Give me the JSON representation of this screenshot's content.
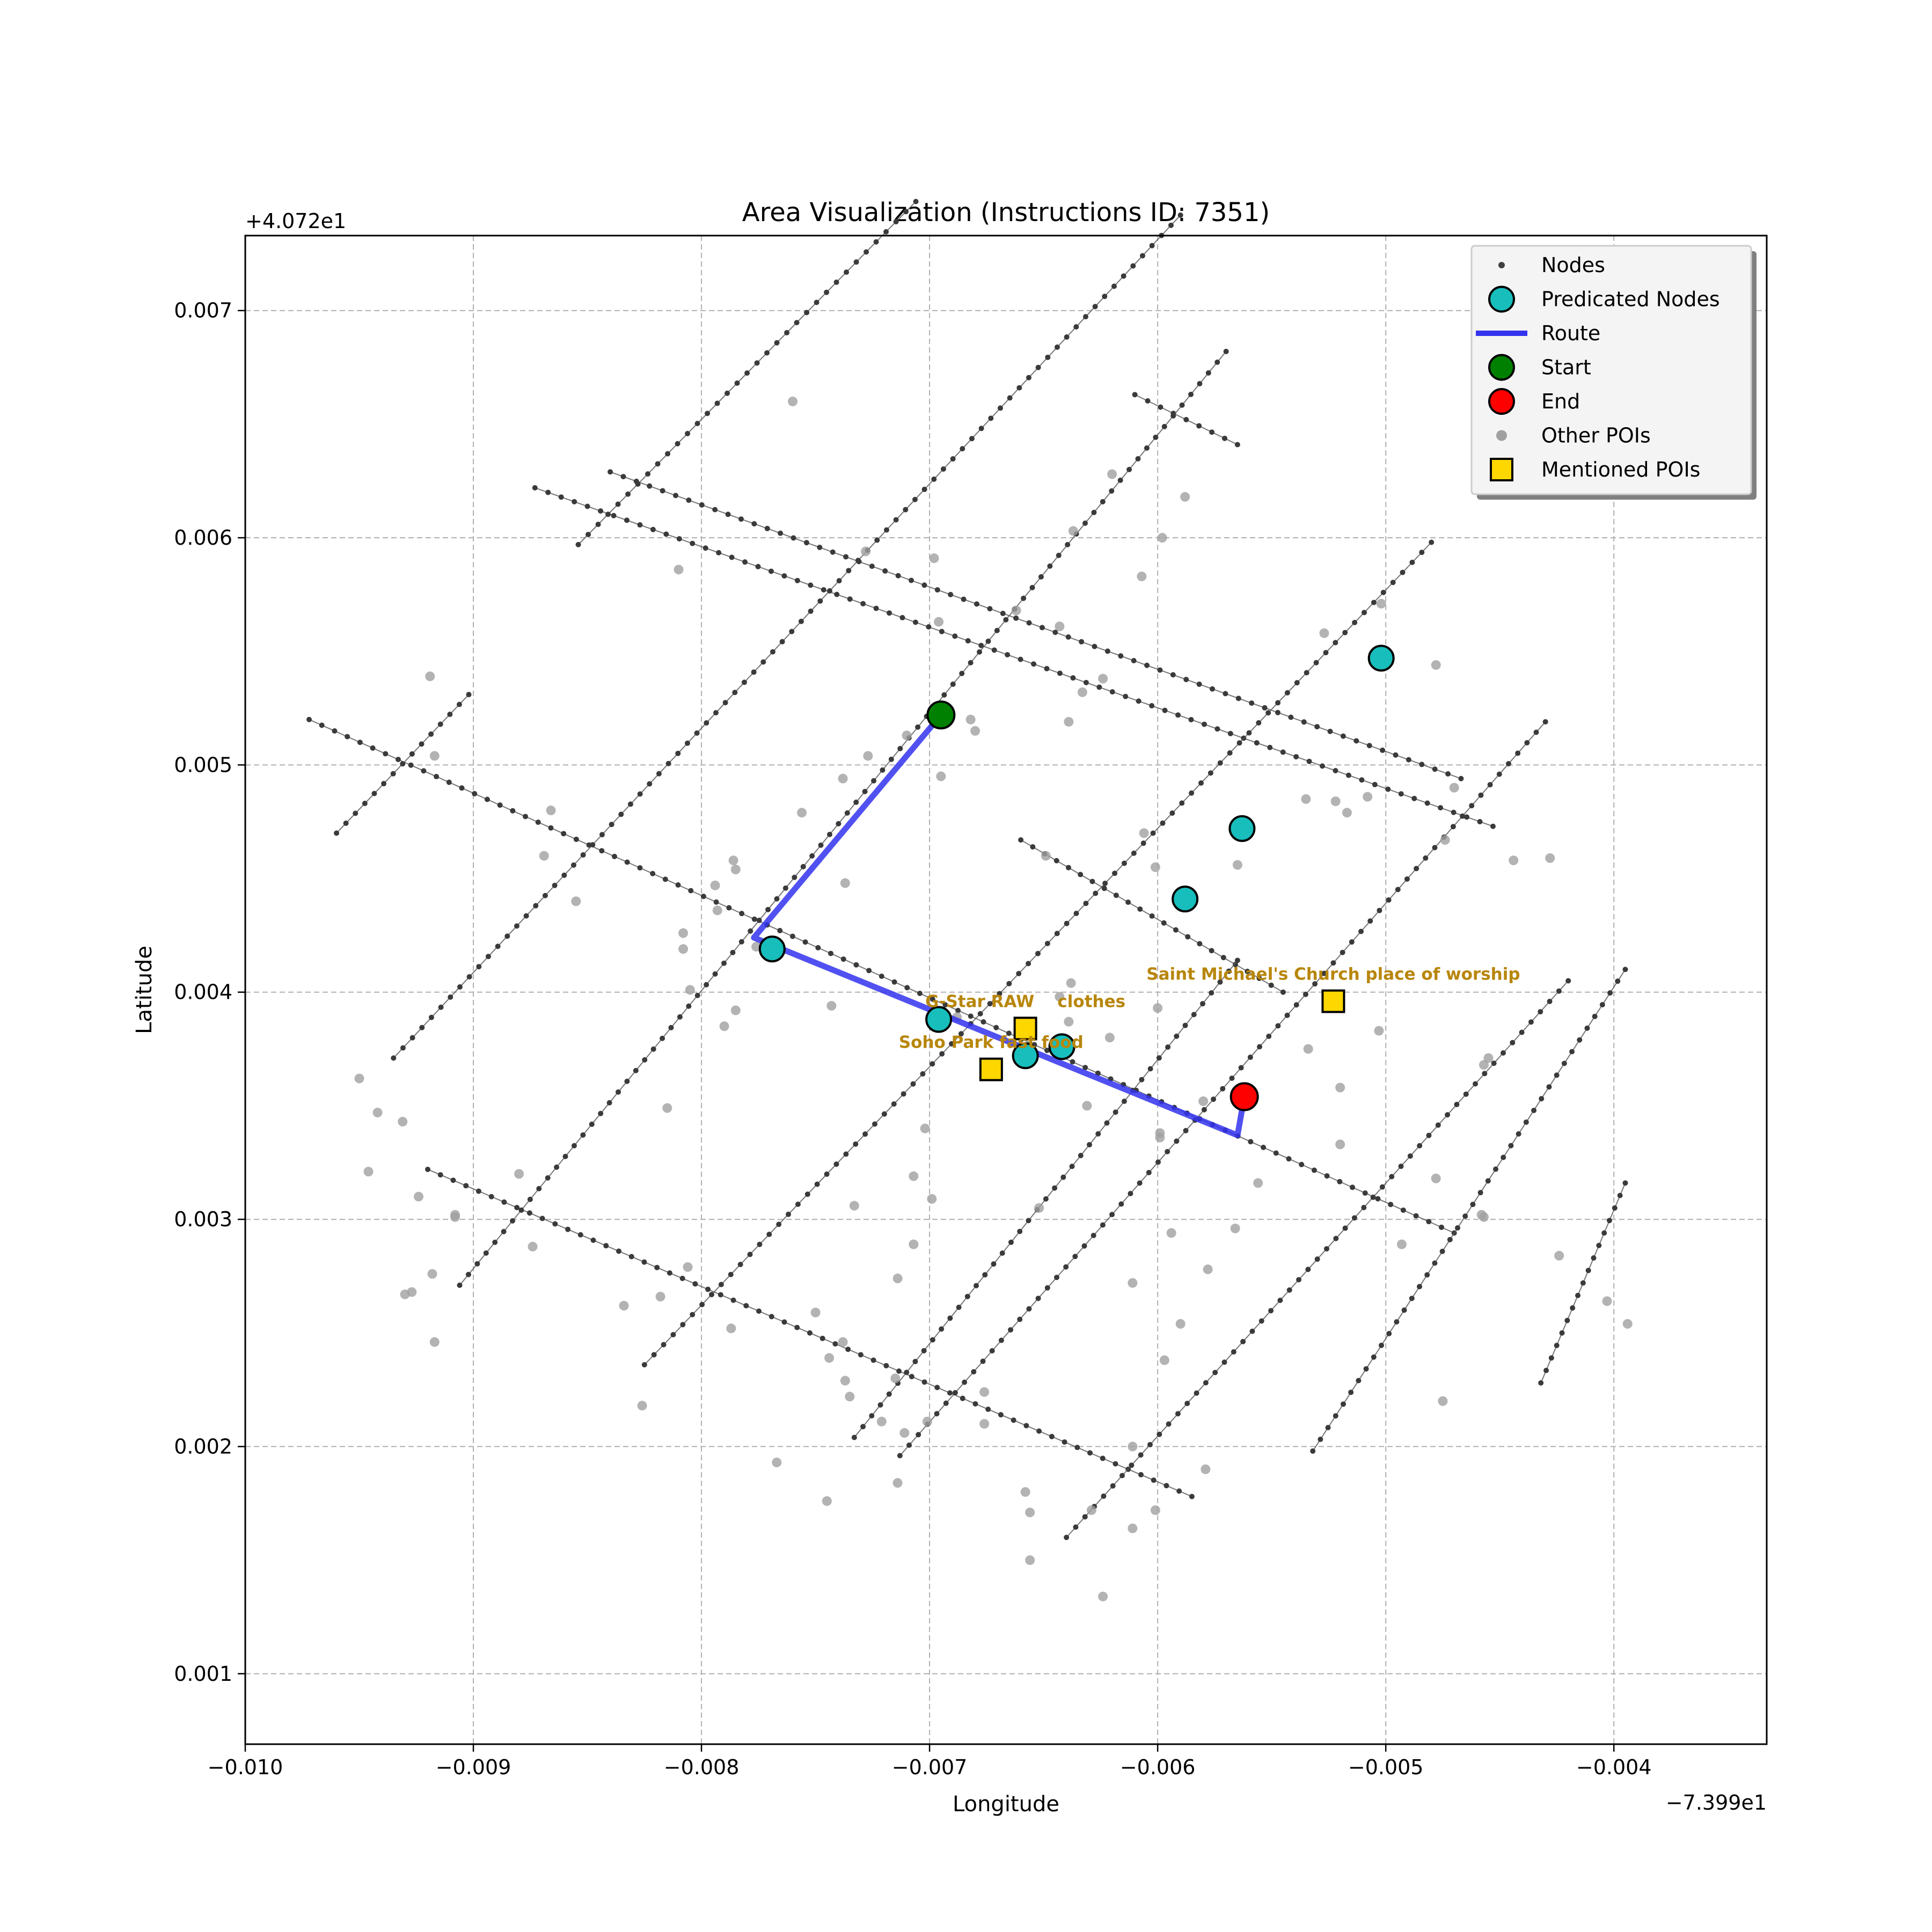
{
  "chart_data": {
    "type": "scatter",
    "title": "Area Visualization (Instructions ID: 7351)",
    "xlabel": "Longitude",
    "ylabel": "Latitude",
    "x_offset_label": "−7.399e1",
    "y_offset_label": "+4.072e1",
    "xlim": [
      -0.01,
      -0.00333
    ],
    "ylim": [
      0.00069,
      0.00733
    ],
    "x_ticks": [
      -0.01,
      -0.009,
      -0.008,
      -0.007,
      -0.006,
      -0.005,
      -0.004
    ],
    "x_tick_labels": [
      "−0.010",
      "−0.009",
      "−0.008",
      "−0.007",
      "−0.006",
      "−0.005",
      "−0.004"
    ],
    "y_ticks": [
      0.001,
      0.002,
      0.003,
      0.004,
      0.005,
      0.006,
      0.007
    ],
    "y_tick_labels": [
      "0.001",
      "0.002",
      "0.003",
      "0.004",
      "0.005",
      "0.006",
      "0.007"
    ],
    "grid": true,
    "legend_position": "top-right",
    "legend": [
      {
        "label": "Nodes",
        "marker": "small-dot",
        "color": "#404040"
      },
      {
        "label": "Predicated Nodes",
        "marker": "circle",
        "color": "#17bebb"
      },
      {
        "label": "Route",
        "marker": "line",
        "color": "#3333ee"
      },
      {
        "label": "Start",
        "marker": "circle",
        "color": "#008000"
      },
      {
        "label": "End",
        "marker": "circle",
        "color": "#ff0000"
      },
      {
        "label": "Other POIs",
        "marker": "grey-dot",
        "color": "#a0a0a0"
      },
      {
        "label": "Mentioned POIs",
        "marker": "square",
        "color": "#ffd700"
      }
    ],
    "streets": [
      [
        [
          -0.00972,
          0.0052
        ],
        [
          -0.0047,
          0.00294
        ]
      ],
      [
        [
          -0.00873,
          0.00622
        ],
        [
          -0.00453,
          0.00473
        ]
      ],
      [
        [
          -0.0084,
          0.00629
        ],
        [
          -0.00467,
          0.00494
        ]
      ],
      [
        [
          -0.0092,
          0.00322
        ],
        [
          -0.00585,
          0.00178
        ]
      ],
      [
        [
          -0.0066,
          0.00467
        ],
        [
          -0.00545,
          0.004
        ]
      ],
      [
        [
          -0.0061,
          0.00663
        ],
        [
          -0.00565,
          0.00641
        ]
      ],
      [
        [
          -0.0096,
          0.0047
        ],
        [
          -0.00902,
          0.00531
        ]
      ],
      [
        [
          -0.00854,
          0.00597
        ],
        [
          -0.00706,
          0.00748
        ]
      ],
      [
        [
          -0.00935,
          0.00371
        ],
        [
          -0.0059,
          0.00742
        ]
      ],
      [
        [
          -0.00906,
          0.00271
        ],
        [
          -0.0057,
          0.00682
        ]
      ],
      [
        [
          -0.00825,
          0.00236
        ],
        [
          -0.0048,
          0.00598
        ]
      ],
      [
        [
          -0.00733,
          0.00204
        ],
        [
          -0.00565,
          0.00414
        ]
      ],
      [
        [
          -0.00713,
          0.00196
        ],
        [
          -0.0043,
          0.00519
        ]
      ],
      [
        [
          -0.0064,
          0.0016
        ],
        [
          -0.0042,
          0.00405
        ]
      ],
      [
        [
          -0.00532,
          0.00198
        ],
        [
          -0.00395,
          0.0041
        ]
      ],
      [
        [
          -0.00432,
          0.00228
        ],
        [
          -0.00395,
          0.00316
        ]
      ]
    ],
    "other_pois": [
      [
        -0.0076,
        0.0066
      ],
      [
        -0.00728,
        0.00594
      ],
      [
        -0.00698,
        0.00591
      ],
      [
        -0.00637,
        0.00603
      ],
      [
        -0.00598,
        0.006
      ],
      [
        -0.00588,
        0.00618
      ],
      [
        -0.0062,
        0.00628
      ],
      [
        -0.0081,
        0.00586
      ],
      [
        -0.00696,
        0.00563
      ],
      [
        -0.00662,
        0.00568
      ],
      [
        -0.00643,
        0.00561
      ],
      [
        -0.00607,
        0.00583
      ],
      [
        -0.00527,
        0.00558
      ],
      [
        -0.00502,
        0.00571
      ],
      [
        -0.00478,
        0.00544
      ],
      [
        -0.00919,
        0.00539
      ],
      [
        -0.00917,
        0.00504
      ],
      [
        -0.00727,
        0.00504
      ],
      [
        -0.0071,
        0.00513
      ],
      [
        -0.00682,
        0.0052
      ],
      [
        -0.0068,
        0.00515
      ],
      [
        -0.00633,
        0.00532
      ],
      [
        -0.00624,
        0.00538
      ],
      [
        -0.00639,
        0.00519
      ],
      [
        -0.00695,
        0.00495
      ],
      [
        -0.00738,
        0.00494
      ],
      [
        -0.00756,
        0.00479
      ],
      [
        -0.0047,
        0.0049
      ],
      [
        -0.00522,
        0.00484
      ],
      [
        -0.00517,
        0.00479
      ],
      [
        -0.00508,
        0.00486
      ],
      [
        -0.00535,
        0.00485
      ],
      [
        -0.00474,
        0.00467
      ],
      [
        -0.00444,
        0.00458
      ],
      [
        -0.00428,
        0.00459
      ],
      [
        -0.00606,
        0.0047
      ],
      [
        -0.00601,
        0.00455
      ],
      [
        -0.00565,
        0.00456
      ],
      [
        -0.00649,
        0.0046
      ],
      [
        -0.00737,
        0.00448
      ],
      [
        -0.00786,
        0.00458
      ],
      [
        -0.00785,
        0.00454
      ],
      [
        -0.00794,
        0.00447
      ],
      [
        -0.00866,
        0.0048
      ],
      [
        -0.00869,
        0.0046
      ],
      [
        -0.00855,
        0.0044
      ],
      [
        -0.00793,
        0.00436
      ],
      [
        -0.00808,
        0.00426
      ],
      [
        -0.00808,
        0.00419
      ],
      [
        -0.00776,
        0.0042
      ],
      [
        -0.00805,
        0.00401
      ],
      [
        -0.00785,
        0.00392
      ],
      [
        -0.0079,
        0.00385
      ],
      [
        -0.00743,
        0.00394
      ],
      [
        -0.00638,
        0.00404
      ],
      [
        -0.00643,
        0.00398
      ],
      [
        -0.006,
        0.00393
      ],
      [
        -0.00621,
        0.0038
      ],
      [
        -0.00534,
        0.00375
      ],
      [
        -0.00503,
        0.00383
      ],
      [
        -0.00455,
        0.00371
      ],
      [
        -0.00457,
        0.00368
      ],
      [
        -0.0052,
        0.00358
      ],
      [
        -0.0058,
        0.00352
      ],
      [
        -0.00631,
        0.0035
      ],
      [
        -0.00599,
        0.00338
      ],
      [
        -0.00599,
        0.00336
      ],
      [
        -0.0052,
        0.00333
      ],
      [
        -0.00815,
        0.00349
      ],
      [
        -0.0095,
        0.00362
      ],
      [
        -0.00942,
        0.00347
      ],
      [
        -0.00931,
        0.00343
      ],
      [
        -0.00946,
        0.00321
      ],
      [
        -0.00924,
        0.0031
      ],
      [
        -0.0088,
        0.0032
      ],
      [
        -0.00908,
        0.00301
      ],
      [
        -0.00908,
        0.00302
      ],
      [
        -0.00874,
        0.00288
      ],
      [
        -0.00918,
        0.00276
      ],
      [
        -0.0093,
        0.00267
      ],
      [
        -0.00927,
        0.00268
      ],
      [
        -0.00917,
        0.00246
      ],
      [
        -0.00806,
        0.00279
      ],
      [
        -0.00818,
        0.00266
      ],
      [
        -0.00787,
        0.00252
      ],
      [
        -0.00702,
        0.0034
      ],
      [
        -0.00707,
        0.00319
      ],
      [
        -0.00652,
        0.00305
      ],
      [
        -0.00733,
        0.00306
      ],
      [
        -0.00699,
        0.00309
      ],
      [
        -0.00707,
        0.00289
      ],
      [
        -0.00714,
        0.00274
      ],
      [
        -0.00611,
        0.00272
      ],
      [
        -0.00594,
        0.00294
      ],
      [
        -0.00578,
        0.00278
      ],
      [
        -0.0059,
        0.00254
      ],
      [
        -0.00597,
        0.00238
      ],
      [
        -0.00566,
        0.00296
      ],
      [
        -0.00556,
        0.00316
      ],
      [
        -0.00493,
        0.00289
      ],
      [
        -0.00478,
        0.00318
      ],
      [
        -0.00458,
        0.00302
      ],
      [
        -0.00457,
        0.00301
      ],
      [
        -0.00424,
        0.00284
      ],
      [
        -0.00403,
        0.00264
      ],
      [
        -0.00394,
        0.00254
      ],
      [
        -0.00475,
        0.0022
      ],
      [
        -0.00826,
        0.00218
      ],
      [
        -0.0075,
        0.00259
      ],
      [
        -0.00738,
        0.00246
      ],
      [
        -0.00744,
        0.00239
      ],
      [
        -0.00737,
        0.00229
      ],
      [
        -0.00715,
        0.0023
      ],
      [
        -0.00721,
        0.00211
      ],
      [
        -0.00735,
        0.00222
      ],
      [
        -0.00701,
        0.00211
      ],
      [
        -0.00676,
        0.00224
      ],
      [
        -0.00676,
        0.0021
      ],
      [
        -0.00711,
        0.00206
      ],
      [
        -0.00767,
        0.00193
      ],
      [
        -0.00745,
        0.00176
      ],
      [
        -0.00714,
        0.00184
      ],
      [
        -0.00611,
        0.002
      ],
      [
        -0.00579,
        0.0019
      ],
      [
        -0.00658,
        0.0018
      ],
      [
        -0.00656,
        0.00171
      ],
      [
        -0.00629,
        0.00172
      ],
      [
        -0.00611,
        0.00164
      ],
      [
        -0.00601,
        0.00172
      ],
      [
        -0.00656,
        0.0015
      ],
      [
        -0.00624,
        0.00134
      ],
      [
        -0.00834,
        0.00262
      ],
      [
        -0.00688,
        0.00389
      ],
      [
        -0.00639,
        0.00387
      ]
    ],
    "route": [
      [
        -0.00695,
        0.00522
      ],
      [
        -0.00777,
        0.00424
      ],
      [
        -0.00565,
        0.00337
      ],
      [
        -0.00562,
        0.00354
      ]
    ],
    "predicated_nodes": [
      [
        -0.00769,
        0.00419
      ],
      [
        -0.00696,
        0.00388
      ],
      [
        -0.00658,
        0.00372
      ],
      [
        -0.00642,
        0.00376
      ],
      [
        -0.00588,
        0.00441
      ],
      [
        -0.00563,
        0.00472
      ],
      [
        -0.00502,
        0.00547
      ]
    ],
    "start": [
      -0.00695,
      0.00522
    ],
    "end": [
      -0.00562,
      0.00354
    ],
    "mentioned_pois": [
      {
        "x": -0.00658,
        "y": 0.00384,
        "label": "G-Star RAW    clothes"
      },
      {
        "x": -0.00673,
        "y": 0.00366,
        "label": "Soho Park fast food"
      },
      {
        "x": -0.00523,
        "y": 0.00396,
        "label": "Saint Michael's Church place of worship"
      }
    ]
  }
}
